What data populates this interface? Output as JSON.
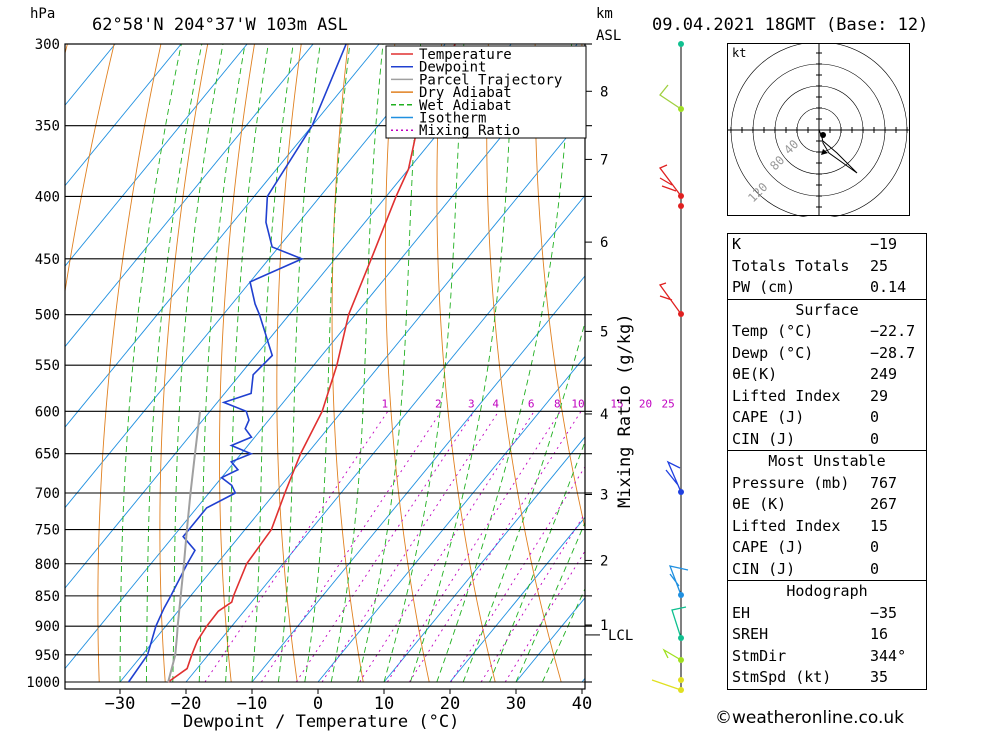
{
  "header": {
    "hpa_label": "hPa",
    "location": "62°58'N  204°37'W  103m  ASL",
    "km_label": "km",
    "asl_label": "ASL",
    "datetime": "09.04.2021  18GMT  (Base: 12)"
  },
  "chart_data": {
    "type": "line",
    "xlabel": "Dewpoint / Temperature (°C)",
    "ylabel_left": "hPa",
    "ylabel_right": "Mixing Ratio (g/kg)",
    "pressure_ticks": [
      300,
      350,
      400,
      450,
      500,
      550,
      600,
      650,
      700,
      750,
      800,
      850,
      900,
      950,
      1000
    ],
    "pressure_tick_labels": [
      "300",
      "350",
      "400",
      "450",
      "500",
      "550",
      "600",
      "650",
      "700",
      "750",
      "800",
      "850",
      "900",
      "950",
      "1000"
    ],
    "temperature_ticks": [
      -30,
      -20,
      -10,
      0,
      10,
      20,
      30,
      40
    ],
    "temperature_tick_labels": [
      "−30",
      "−20",
      "−10",
      "0",
      "10",
      "20",
      "30",
      "40"
    ],
    "km_ticks": [
      1,
      2,
      3,
      4,
      5,
      6,
      7,
      8
    ],
    "km_tick_labels": [
      "1",
      "2",
      "3",
      "4",
      "5",
      "6",
      "7",
      "8"
    ],
    "km_pressure": [
      898,
      795,
      702,
      603,
      516,
      436,
      373,
      328
    ],
    "lcl_label": "LCL",
    "lcl_pressure": 915,
    "mixing_ratio_labels": [
      "1",
      "2",
      "3",
      "4",
      "6",
      "8",
      "10",
      "15",
      "20",
      "25"
    ],
    "mixing_ratio_values": [
      1,
      2,
      3,
      4,
      6,
      8,
      10,
      15,
      20,
      25
    ],
    "xlim": [
      -40,
      40
    ],
    "ylim": [
      1000,
      300
    ],
    "legend_placement": "top-right",
    "series": [
      {
        "name": "Temperature",
        "color": "#e03030",
        "pressure": [
          1000,
          975,
          950,
          925,
          900,
          875,
          860,
          850,
          800,
          750,
          700,
          650,
          600,
          550,
          500,
          450,
          400,
          380,
          350,
          300
        ],
        "values": [
          -22.7,
          -21.5,
          -22.5,
          -23.4,
          -23.8,
          -23.9,
          -23.0,
          -23.5,
          -25.5,
          -26.0,
          -28.5,
          -31.0,
          -33.0,
          -36.5,
          -41.0,
          -44.5,
          -48.5,
          -50.0,
          -54.0,
          -58.5
        ]
      },
      {
        "name": "Dewpoint",
        "color": "#2040d0",
        "pressure": [
          1000,
          950,
          900,
          870,
          850,
          800,
          780,
          760,
          720,
          700,
          690,
          680,
          670,
          660,
          650,
          640,
          630,
          620,
          610,
          600,
          590,
          580,
          560,
          540,
          500,
          490,
          470,
          450,
          440,
          420,
          400,
          350,
          300
        ],
        "values": [
          -28.7,
          -29.2,
          -31.5,
          -32.5,
          -33.0,
          -34.5,
          -35.0,
          -38.5,
          -38.5,
          -36.0,
          -37.5,
          -40.0,
          -38.5,
          -40.5,
          -38.5,
          -42.5,
          -40.5,
          -42.5,
          -43.0,
          -44.5,
          -49.0,
          -46.0,
          -48.0,
          -47.5,
          -54.5,
          -56.5,
          -60.0,
          -55.0,
          -61.0,
          -65.0,
          -68.0,
          -70.0,
          -75.0
        ]
      },
      {
        "name": "Parcel Trajectory",
        "color": "#a0a0a0",
        "pressure": [
          1000,
          950,
          915,
          900,
          850,
          800,
          750,
          700,
          650,
          600
        ],
        "values": [
          -22.7,
          -25.0,
          -27.2,
          -28.2,
          -31.5,
          -35.0,
          -38.8,
          -42.8,
          -47.0,
          -51.5
        ]
      },
      {
        "name": "Dry Adiabat",
        "color": "#e08020",
        "values": []
      },
      {
        "name": "Wet Adiabat",
        "color": "#20b020",
        "values": []
      },
      {
        "name": "Isotherm",
        "color": "#2090e0",
        "values": []
      },
      {
        "name": "Mixing Ratio",
        "color": "#c000c0",
        "values": []
      }
    ]
  },
  "hodograph": {
    "unit_label": "kt",
    "ring_labels": [
      "40",
      "80",
      "120"
    ]
  },
  "indices": {
    "k": {
      "label": "K",
      "value": "−19"
    },
    "tt": {
      "label": "Totals Totals",
      "value": "25"
    },
    "pw": {
      "label": "PW (cm)",
      "value": "0.14"
    }
  },
  "surface": {
    "title": "Surface",
    "rows": [
      {
        "label": "Temp (°C)",
        "value": "−22.7"
      },
      {
        "label": "Dewp (°C)",
        "value": "−28.7"
      },
      {
        "label": "θE(K)",
        "value": "249"
      },
      {
        "label": "Lifted Index",
        "value": "29"
      },
      {
        "label": "CAPE (J)",
        "value": "0"
      },
      {
        "label": "CIN (J)",
        "value": "0"
      }
    ]
  },
  "most_unstable": {
    "title": "Most Unstable",
    "rows": [
      {
        "label": "Pressure (mb)",
        "value": "767"
      },
      {
        "label": "θE (K)",
        "value": "267"
      },
      {
        "label": "Lifted Index",
        "value": "15"
      },
      {
        "label": "CAPE (J)",
        "value": "0"
      },
      {
        "label": "CIN (J)",
        "value": "0"
      }
    ]
  },
  "hodograph_table": {
    "title": "Hodograph",
    "rows": [
      {
        "label": "EH",
        "value": "−35"
      },
      {
        "label": "SREH",
        "value": "16"
      },
      {
        "label": "StmDir",
        "value": "344°"
      },
      {
        "label": "StmSpd (kt)",
        "value": "35"
      }
    ]
  },
  "footer": {
    "copyright": "©weatheronline.co.uk"
  },
  "colors": {
    "temperature": "#e03030",
    "dewpoint": "#2040d0",
    "parcel": "#a0a0a0",
    "dry": "#e08020",
    "wet": "#20b020",
    "iso": "#2090e0",
    "mix": "#c000c0"
  }
}
